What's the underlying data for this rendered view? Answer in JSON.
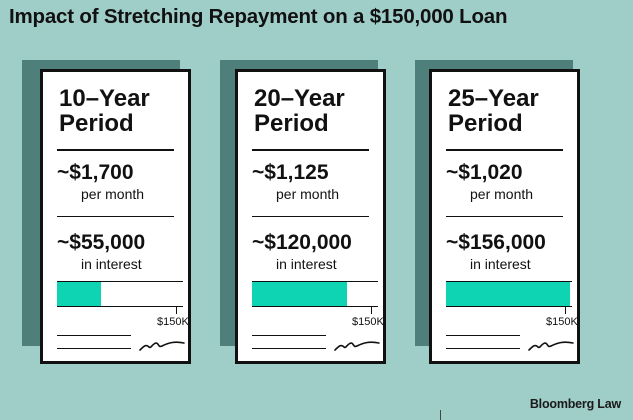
{
  "title": "Impact of Stretching Repayment on a $150,000 Loan",
  "brand": "Bloomberg Law",
  "colors": {
    "background": "#9fcdc8",
    "card_shadow": "#4f7f7a",
    "bar_fill": "#0fd4b4"
  },
  "scale_label": "$150K",
  "cards": [
    {
      "period": "10–Year Period",
      "monthly": "~$1,700",
      "monthly_label": "per month",
      "interest": "~$55,000",
      "interest_label": "in interest",
      "interest_value": 55000
    },
    {
      "period": "20–Year Period",
      "monthly": "~$1,125",
      "monthly_label": "per month",
      "interest": "~$120,000",
      "interest_label": "in interest",
      "interest_value": 120000
    },
    {
      "period": "25–Year Period",
      "monthly": "~$1,020",
      "monthly_label": "per month",
      "interest": "~$156,000",
      "interest_label": "in interest",
      "interest_value": 156000
    }
  ],
  "bar_max": 150000
}
